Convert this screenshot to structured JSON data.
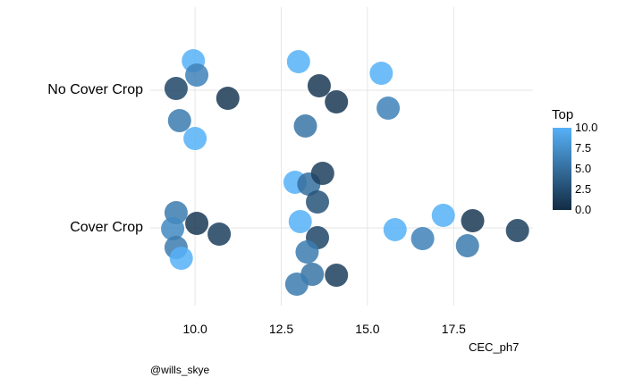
{
  "chart_data": {
    "type": "scatter",
    "xlabel": "CEC_ph7",
    "ylabel": "",
    "xlim": [
      8.7,
      19.8
    ],
    "x_ticks": [
      "10.0",
      "12.5",
      "15.0",
      "17.5"
    ],
    "x_tick_values": [
      10.0,
      12.5,
      15.0,
      17.5
    ],
    "categories": [
      "No Cover Crop",
      "Cover Crop"
    ],
    "grid": true,
    "color_scale": {
      "title": "Top",
      "min": 0,
      "max": 10,
      "low_color": "#132b43",
      "high_color": "#56b1f7",
      "ticks": [
        "10.0",
        "7.5",
        "5.0",
        "2.5",
        "0.0"
      ],
      "tick_values": [
        10.0,
        7.5,
        5.0,
        2.5,
        0.0
      ]
    },
    "legend_position": "right",
    "points": [
      {
        "category": "No Cover Crop",
        "x": 9.95,
        "jitter": 0.33,
        "top": 10.0
      },
      {
        "category": "No Cover Crop",
        "x": 10.05,
        "jitter": 0.17,
        "top": 6.5
      },
      {
        "category": "No Cover Crop",
        "x": 9.45,
        "jitter": 0.02,
        "top": 2.0
      },
      {
        "category": "No Cover Crop",
        "x": 10.95,
        "jitter": -0.09,
        "top": 1.0
      },
      {
        "category": "No Cover Crop",
        "x": 9.55,
        "jitter": -0.34,
        "top": 6.0
      },
      {
        "category": "No Cover Crop",
        "x": 10.0,
        "jitter": -0.54,
        "top": 10.0
      },
      {
        "category": "No Cover Crop",
        "x": 13.0,
        "jitter": 0.32,
        "top": 10.0
      },
      {
        "category": "No Cover Crop",
        "x": 13.6,
        "jitter": 0.05,
        "top": 1.0
      },
      {
        "category": "No Cover Crop",
        "x": 14.1,
        "jitter": -0.13,
        "top": 1.0
      },
      {
        "category": "No Cover Crop",
        "x": 13.2,
        "jitter": -0.4,
        "top": 5.5
      },
      {
        "category": "No Cover Crop",
        "x": 15.4,
        "jitter": 0.19,
        "top": 10.0
      },
      {
        "category": "No Cover Crop",
        "x": 15.6,
        "jitter": -0.2,
        "top": 6.5
      },
      {
        "category": "Cover Crop",
        "x": 9.45,
        "jitter": 0.17,
        "top": 6.0
      },
      {
        "category": "Cover Crop",
        "x": 10.05,
        "jitter": 0.05,
        "top": 1.0
      },
      {
        "category": "Cover Crop",
        "x": 9.35,
        "jitter": -0.01,
        "top": 7.0
      },
      {
        "category": "Cover Crop",
        "x": 10.7,
        "jitter": -0.07,
        "top": 1.5
      },
      {
        "category": "Cover Crop",
        "x": 9.45,
        "jitter": -0.22,
        "top": 6.0
      },
      {
        "category": "Cover Crop",
        "x": 9.6,
        "jitter": -0.34,
        "top": 10.0
      },
      {
        "category": "Cover Crop",
        "x": 12.9,
        "jitter": 0.51,
        "top": 10.0
      },
      {
        "category": "Cover Crop",
        "x": 13.3,
        "jitter": 0.49,
        "top": 5.0
      },
      {
        "category": "Cover Crop",
        "x": 13.7,
        "jitter": 0.61,
        "top": 1.5
      },
      {
        "category": "Cover Crop",
        "x": 13.55,
        "jitter": 0.29,
        "top": 3.0
      },
      {
        "category": "Cover Crop",
        "x": 13.05,
        "jitter": 0.07,
        "top": 10.0
      },
      {
        "category": "Cover Crop",
        "x": 13.55,
        "jitter": -0.11,
        "top": 2.0
      },
      {
        "category": "Cover Crop",
        "x": 13.25,
        "jitter": -0.27,
        "top": 6.0
      },
      {
        "category": "Cover Crop",
        "x": 14.1,
        "jitter": -0.53,
        "top": 1.5
      },
      {
        "category": "Cover Crop",
        "x": 13.4,
        "jitter": -0.52,
        "top": 5.5
      },
      {
        "category": "Cover Crop",
        "x": 12.95,
        "jitter": -0.63,
        "top": 6.0
      },
      {
        "category": "Cover Crop",
        "x": 15.8,
        "jitter": -0.02,
        "top": 10.0
      },
      {
        "category": "Cover Crop",
        "x": 16.6,
        "jitter": -0.12,
        "top": 6.5
      },
      {
        "category": "Cover Crop",
        "x": 17.2,
        "jitter": 0.14,
        "top": 10.0
      },
      {
        "category": "Cover Crop",
        "x": 17.9,
        "jitter": -0.2,
        "top": 6.0
      },
      {
        "category": "Cover Crop",
        "x": 18.05,
        "jitter": 0.08,
        "top": 1.0
      },
      {
        "category": "Cover Crop",
        "x": 19.35,
        "jitter": -0.03,
        "top": 1.5
      }
    ]
  },
  "credit": "@wills_skye"
}
